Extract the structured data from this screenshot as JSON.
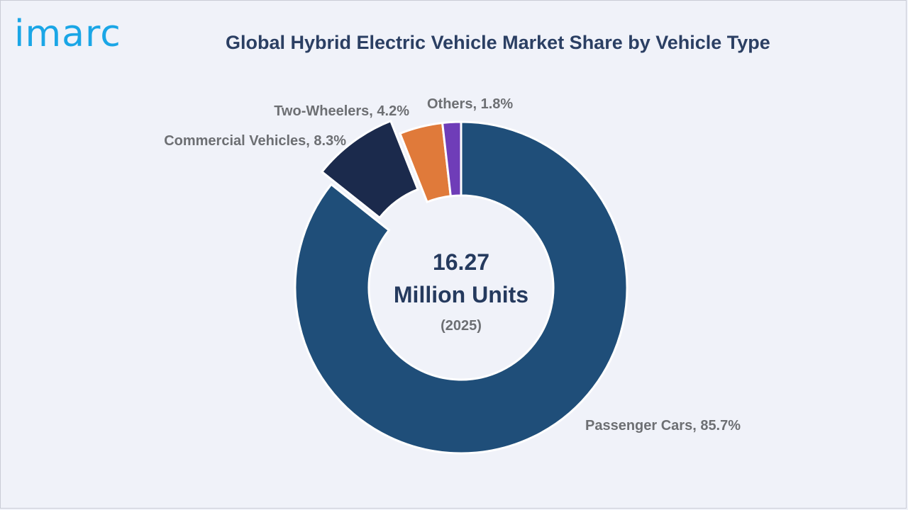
{
  "brand": {
    "logo_text": "imarc"
  },
  "chart_data": {
    "type": "pie",
    "title": "Global Hybrid Electric Vehicle Market Share by Vehicle Type",
    "center": {
      "value": "16.27",
      "unit": "Million Units",
      "year": "(2025)"
    },
    "slices": [
      {
        "label": "Passenger Cars, 85.7%",
        "value": 85.7,
        "color": "#1f4e79"
      },
      {
        "label": "Commercial Vehicles, 8.3%",
        "value": 8.3,
        "color": "#1b2a4c",
        "exploded": true
      },
      {
        "label": "Two-Wheelers, 4.2%",
        "value": 4.2,
        "color": "#e07a3a"
      },
      {
        "label": "Others, 1.8%",
        "value": 1.8,
        "color": "#6f3db8"
      }
    ],
    "legend": "none"
  }
}
